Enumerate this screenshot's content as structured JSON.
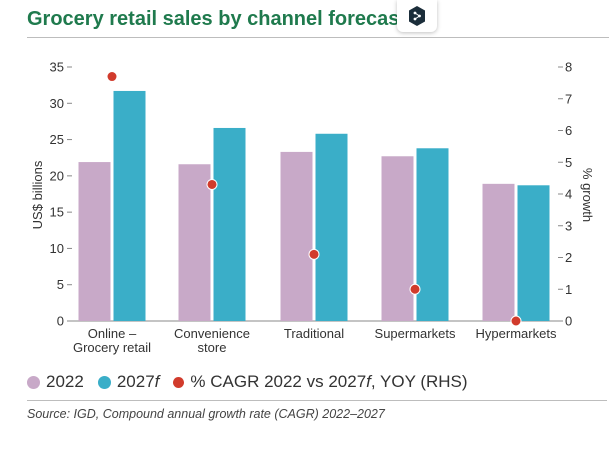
{
  "chart_data": {
    "type": "bar",
    "title": "Grocery retail sales by channel forecast",
    "categories": [
      "Online –|Grocery retail",
      "Convenience|store",
      "Traditional",
      "Supermarkets",
      "Hypermarkets"
    ],
    "series": [
      {
        "name": "2022",
        "color": "#c8a9c8",
        "values": [
          21.9,
          21.6,
          23.3,
          22.7,
          18.9
        ]
      },
      {
        "name": "2027f",
        "color": "#3aaec8",
        "values": [
          31.7,
          26.6,
          25.8,
          23.8,
          18.7
        ]
      }
    ],
    "line_series": {
      "name": "% CAGR 2022 vs 2027f, YOY (RHS)",
      "color": "#d13b2c",
      "values": [
        7.7,
        4.3,
        2.1,
        1.0,
        0.0
      ]
    },
    "ylabel": "US$ billions",
    "ylabel_right": "% growth",
    "ylim": [
      0,
      35
    ],
    "yticks": [
      0,
      5,
      10,
      15,
      20,
      25,
      30,
      35
    ],
    "ylim_right": [
      0,
      8
    ],
    "yticks_right": [
      0,
      1,
      2,
      3,
      4,
      5,
      6,
      7,
      8
    ]
  },
  "legend": {
    "item_2022": "2022",
    "item_2027_prefix": "2027",
    "item_2027_suffix": "f",
    "item_cagr_a": "% CAGR 2022 vs 2027",
    "item_cagr_f": "f",
    "item_cagr_b": ", YOY (RHS)"
  },
  "source": "Source: IGD, Compound annual growth rate (CAGR) 2022–2027",
  "colors": {
    "title": "#1f7a4d",
    "bar_2022": "#c8a9c8",
    "bar_2027": "#3aaec8",
    "cagr_dot": "#d13b2c"
  }
}
